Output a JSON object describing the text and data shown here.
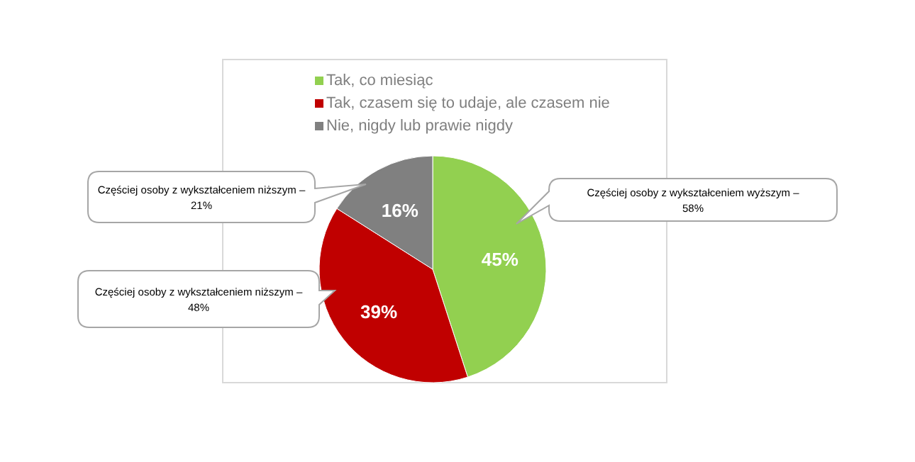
{
  "chart_data": {
    "type": "pie",
    "categories": [
      "Tak, co miesiąc",
      "Tak, czasem się to udaje, ale czasem nie",
      "Nie, nigdy lub prawie nigdy"
    ],
    "values": [
      45,
      39,
      16
    ],
    "colors": [
      "#92d050",
      "#c00000",
      "#808080"
    ],
    "value_labels": [
      "45%",
      "39%",
      "16%"
    ],
    "legend": "top",
    "annotations": [
      "Częściej osoby z wykształceniem wyższym – 58%",
      "Częściej osoby z wykształceniem niższym – 48%",
      "Częściej osoby z wykształceniem niższym – 21%"
    ]
  }
}
